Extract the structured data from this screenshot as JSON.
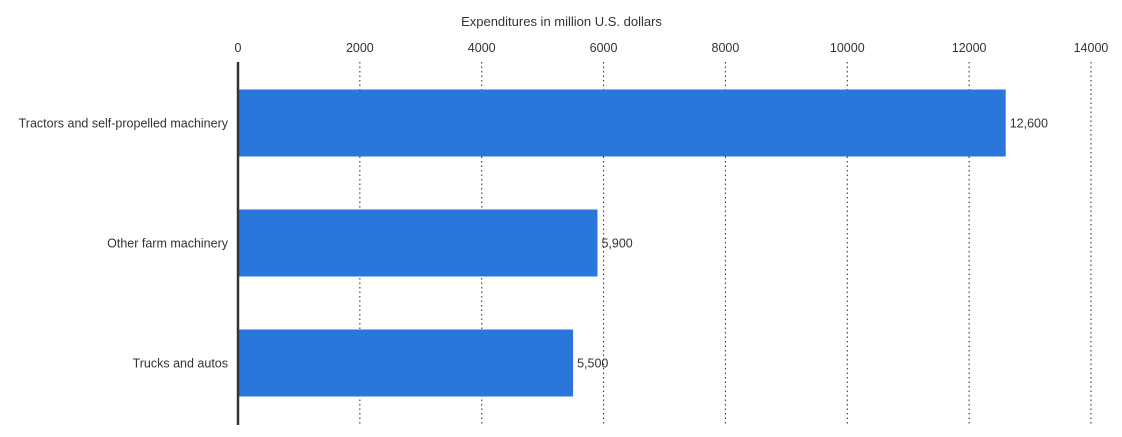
{
  "chart_data": {
    "type": "bar",
    "orientation": "horizontal",
    "title": "",
    "xlabel": "Expenditures in million U.S. dollars",
    "ylabel": "",
    "categories": [
      "Tractors and self-propelled machinery",
      "Other farm machinery",
      "Trucks and autos"
    ],
    "values": [
      12600,
      5900,
      5500
    ],
    "value_labels": [
      "12,600",
      "5,900",
      "5,500"
    ],
    "xlim": [
      0,
      14000
    ],
    "ticks": [
      0,
      2000,
      4000,
      6000,
      8000,
      10000,
      12000,
      14000
    ],
    "tick_labels": [
      "0",
      "2000",
      "4000",
      "6000",
      "8000",
      "10000",
      "12000",
      "14000"
    ],
    "axis_position": "top",
    "grid": true,
    "bar_color": "#2a76dd"
  }
}
